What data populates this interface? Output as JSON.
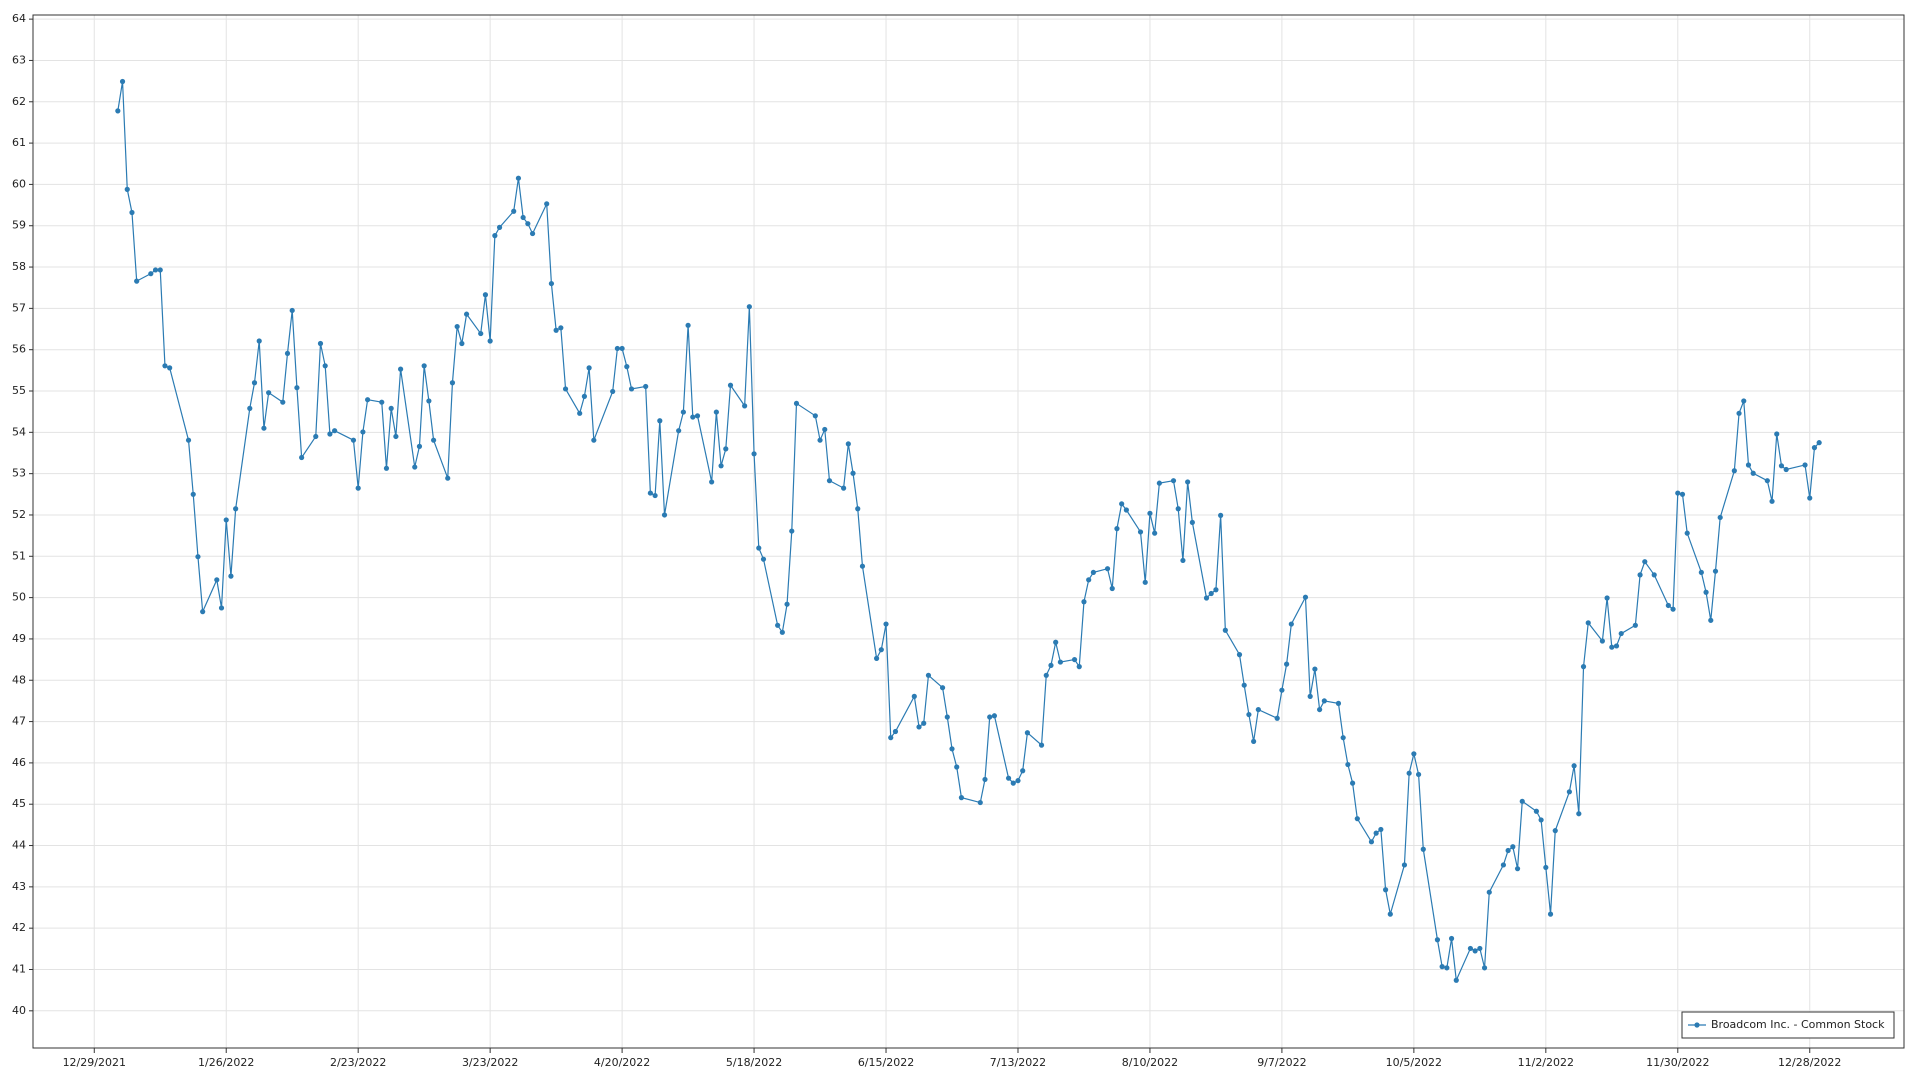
{
  "chart_data": {
    "type": "line",
    "x": [
      "1/3/2022",
      "1/4/2022",
      "1/5/2022",
      "1/6/2022",
      "1/7/2022",
      "1/10/2022",
      "1/11/2022",
      "1/12/2022",
      "1/13/2022",
      "1/14/2022",
      "1/18/2022",
      "1/19/2022",
      "1/20/2022",
      "1/21/2022",
      "1/24/2022",
      "1/25/2022",
      "1/26/2022",
      "1/27/2022",
      "1/28/2022",
      "1/31/2022",
      "2/1/2022",
      "2/2/2022",
      "2/3/2022",
      "2/4/2022",
      "2/7/2022",
      "2/8/2022",
      "2/9/2022",
      "2/10/2022",
      "2/11/2022",
      "2/14/2022",
      "2/15/2022",
      "2/16/2022",
      "2/17/2022",
      "2/18/2022",
      "2/22/2022",
      "2/23/2022",
      "2/24/2022",
      "2/25/2022",
      "2/28/2022",
      "3/1/2022",
      "3/2/2022",
      "3/3/2022",
      "3/4/2022",
      "3/7/2022",
      "3/8/2022",
      "3/9/2022",
      "3/10/2022",
      "3/11/2022",
      "3/14/2022",
      "3/15/2022",
      "3/16/2022",
      "3/17/2022",
      "3/18/2022",
      "3/21/2022",
      "3/22/2022",
      "3/23/2022",
      "3/24/2022",
      "3/25/2022",
      "3/28/2022",
      "3/29/2022",
      "3/30/2022",
      "3/31/2022",
      "4/1/2022",
      "4/4/2022",
      "4/5/2022",
      "4/6/2022",
      "4/7/2022",
      "4/8/2022",
      "4/11/2022",
      "4/12/2022",
      "4/13/2022",
      "4/14/2022",
      "4/18/2022",
      "4/19/2022",
      "4/20/2022",
      "4/21/2022",
      "4/22/2022",
      "4/25/2022",
      "4/26/2022",
      "4/27/2022",
      "4/28/2022",
      "4/29/2022",
      "5/2/2022",
      "5/3/2022",
      "5/4/2022",
      "5/5/2022",
      "5/6/2022",
      "5/9/2022",
      "5/10/2022",
      "5/11/2022",
      "5/12/2022",
      "5/13/2022",
      "5/16/2022",
      "5/17/2022",
      "5/18/2022",
      "5/19/2022",
      "5/20/2022",
      "5/23/2022",
      "5/24/2022",
      "5/25/2022",
      "5/26/2022",
      "5/27/2022",
      "5/31/2022",
      "6/1/2022",
      "6/2/2022",
      "6/3/2022",
      "6/6/2022",
      "6/7/2022",
      "6/8/2022",
      "6/9/2022",
      "6/10/2022",
      "6/13/2022",
      "6/14/2022",
      "6/15/2022",
      "6/16/2022",
      "6/17/2022",
      "6/21/2022",
      "6/22/2022",
      "6/23/2022",
      "6/24/2022",
      "6/27/2022",
      "6/28/2022",
      "6/29/2022",
      "6/30/2022",
      "7/1/2022",
      "7/5/2022",
      "7/6/2022",
      "7/7/2022",
      "7/8/2022",
      "7/11/2022",
      "7/12/2022",
      "7/13/2022",
      "7/14/2022",
      "7/15/2022",
      "7/18/2022",
      "7/19/2022",
      "7/20/2022",
      "7/21/2022",
      "7/22/2022",
      "7/25/2022",
      "7/26/2022",
      "7/27/2022",
      "7/28/2022",
      "7/29/2022",
      "8/1/2022",
      "8/2/2022",
      "8/3/2022",
      "8/4/2022",
      "8/5/2022",
      "8/8/2022",
      "8/9/2022",
      "8/10/2022",
      "8/11/2022",
      "8/12/2022",
      "8/15/2022",
      "8/16/2022",
      "8/17/2022",
      "8/18/2022",
      "8/19/2022",
      "8/22/2022",
      "8/23/2022",
      "8/24/2022",
      "8/25/2022",
      "8/26/2022",
      "8/29/2022",
      "8/30/2022",
      "8/31/2022",
      "9/1/2022",
      "9/2/2022",
      "9/6/2022",
      "9/7/2022",
      "9/8/2022",
      "9/9/2022",
      "9/12/2022",
      "9/13/2022",
      "9/14/2022",
      "9/15/2022",
      "9/16/2022",
      "9/19/2022",
      "9/20/2022",
      "9/21/2022",
      "9/22/2022",
      "9/23/2022",
      "9/26/2022",
      "9/27/2022",
      "9/28/2022",
      "9/29/2022",
      "9/30/2022",
      "10/3/2022",
      "10/4/2022",
      "10/5/2022",
      "10/6/2022",
      "10/7/2022",
      "10/10/2022",
      "10/11/2022",
      "10/12/2022",
      "10/13/2022",
      "10/14/2022",
      "10/17/2022",
      "10/18/2022",
      "10/19/2022",
      "10/20/2022",
      "10/21/2022",
      "10/24/2022",
      "10/25/2022",
      "10/26/2022",
      "10/27/2022",
      "10/28/2022",
      "10/31/2022",
      "11/1/2022",
      "11/2/2022",
      "11/3/2022",
      "11/4/2022",
      "11/7/2022",
      "11/8/2022",
      "11/9/2022",
      "11/10/2022",
      "11/11/2022",
      "11/14/2022",
      "11/15/2022",
      "11/16/2022",
      "11/17/2022",
      "11/18/2022",
      "11/21/2022",
      "11/22/2022",
      "11/23/2022",
      "11/25/2022",
      "11/28/2022",
      "11/29/2022",
      "11/30/2022",
      "12/1/2022",
      "12/2/2022",
      "12/5/2022",
      "12/6/2022",
      "12/7/2022",
      "12/8/2022",
      "12/9/2022",
      "12/12/2022",
      "12/13/2022",
      "12/14/2022",
      "12/15/2022",
      "12/16/2022",
      "12/19/2022",
      "12/20/2022",
      "12/21/2022",
      "12/22/2022",
      "12/23/2022",
      "12/27/2022",
      "12/28/2022",
      "12/29/2022",
      "12/30/2022"
    ],
    "series": [
      {
        "name": "Broadcom Inc. - Common Stock",
        "color": "#2b7bb3",
        "values": [
          61.78,
          62.49,
          59.88,
          59.32,
          57.66,
          57.84,
          57.93,
          57.93,
          55.61,
          55.56,
          53.81,
          52.5,
          50.99,
          49.66,
          50.43,
          49.75,
          51.88,
          50.52,
          52.15,
          54.58,
          55.2,
          56.21,
          54.1,
          54.96,
          54.73,
          55.91,
          56.95,
          55.08,
          53.39,
          53.9,
          56.15,
          55.61,
          53.96,
          54.04,
          53.81,
          52.65,
          54.01,
          54.79,
          54.73,
          53.13,
          54.58,
          53.9,
          55.53,
          53.16,
          53.66,
          55.61,
          54.76,
          53.81,
          52.89,
          55.2,
          56.56,
          56.15,
          56.86,
          56.39,
          57.33,
          56.21,
          58.76,
          58.96,
          59.35,
          60.15,
          59.2,
          59.05,
          58.81,
          59.53,
          57.6,
          56.47,
          56.53,
          55.05,
          54.46,
          54.87,
          55.56,
          53.81,
          54.99,
          56.03,
          56.03,
          55.59,
          55.05,
          55.11,
          52.53,
          52.47,
          54.28,
          52.0,
          54.04,
          54.49,
          56.59,
          54.37,
          54.4,
          52.8,
          54.49,
          53.19,
          53.6,
          55.14,
          54.64,
          57.04,
          53.48,
          51.2,
          50.93,
          49.33,
          49.16,
          49.84,
          51.61,
          54.7,
          54.4,
          53.81,
          54.07,
          52.83,
          52.65,
          53.72,
          53.01,
          52.15,
          50.76,
          48.53,
          48.74,
          49.36,
          46.61,
          46.76,
          47.61,
          46.87,
          46.96,
          48.12,
          47.82,
          47.11,
          46.34,
          45.9,
          45.16,
          45.04,
          45.6,
          47.11,
          47.14,
          45.63,
          45.51,
          45.57,
          45.81,
          46.73,
          46.43,
          48.12,
          48.36,
          48.92,
          48.44,
          48.5,
          48.33,
          49.9,
          50.43,
          50.61,
          50.7,
          50.22,
          51.67,
          52.27,
          52.12,
          51.59,
          50.37,
          52.04,
          51.56,
          52.77,
          52.83,
          52.15,
          50.9,
          52.8,
          51.82,
          49.99,
          50.1,
          50.19,
          51.99,
          49.21,
          48.62,
          47.88,
          47.17,
          46.52,
          47.29,
          47.08,
          47.76,
          48.39,
          49.36,
          50.01,
          47.61,
          48.27,
          47.29,
          47.5,
          47.44,
          46.61,
          45.96,
          45.51,
          44.65,
          44.09,
          44.3,
          44.39,
          42.93,
          42.34,
          43.53,
          45.75,
          46.22,
          45.72,
          43.91,
          41.72,
          41.07,
          41.04,
          41.75,
          40.74,
          41.51,
          41.45,
          41.51,
          41.04,
          42.87,
          43.53,
          43.88,
          43.97,
          43.44,
          45.07,
          44.83,
          44.62,
          43.47,
          42.34,
          44.36,
          45.3,
          45.93,
          44.77,
          48.33,
          49.39,
          48.95,
          49.99,
          48.8,
          48.83,
          49.13,
          49.33,
          50.55,
          50.87,
          50.55,
          49.81,
          49.72,
          52.53,
          52.5,
          51.56,
          50.61,
          50.13,
          49.45,
          50.64,
          51.94,
          53.07,
          54.46,
          54.76,
          53.21,
          53.01,
          52.83,
          52.33,
          53.96,
          53.19,
          53.1,
          53.21,
          52.41,
          53.63,
          53.75
        ]
      }
    ],
    "xlim": [
      "12/16/2021",
      "1/17/2023"
    ],
    "xticks": [
      "12/29/2021",
      "1/26/2022",
      "2/23/2022",
      "3/23/2022",
      "4/20/2022",
      "5/18/2022",
      "6/15/2022",
      "7/13/2022",
      "8/10/2022",
      "9/7/2022",
      "10/5/2022",
      "11/2/2022",
      "11/30/2022",
      "12/28/2022"
    ],
    "ylim": [
      39.1,
      64.1
    ],
    "yticks": [
      40,
      41,
      42,
      43,
      44,
      45,
      46,
      47,
      48,
      49,
      50,
      51,
      52,
      53,
      54,
      55,
      56,
      57,
      58,
      59,
      60,
      61,
      62,
      63,
      64
    ],
    "grid": true,
    "legend": "lower right"
  }
}
